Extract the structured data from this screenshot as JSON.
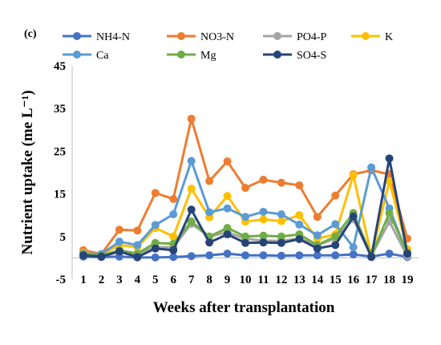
{
  "chart_data": {
    "type": "line",
    "panel_label": "(c)",
    "xlabel": "Weeks after transplantation",
    "ylabel": "Nutrient uptake (me L⁻¹)",
    "x": [
      1,
      2,
      3,
      4,
      5,
      6,
      7,
      8,
      9,
      10,
      11,
      12,
      13,
      14,
      15,
      16,
      17,
      18,
      19
    ],
    "x_tick_labels": [
      "1",
      "2",
      "3",
      "4",
      "5",
      "6",
      "7",
      "8",
      "9",
      "10",
      "11",
      "12",
      "13",
      "14",
      "15",
      "16",
      "17",
      "18",
      "19"
    ],
    "ylim": [
      -5,
      45
    ],
    "y_ticks": [
      -5,
      5,
      15,
      25,
      35,
      45
    ],
    "y_tick_labels": [
      "-5",
      "5",
      "15",
      "25",
      "35",
      "45"
    ],
    "grid": false,
    "legend_position": "top",
    "series": [
      {
        "name": "NH4-N",
        "color": "#4472C4",
        "values": [
          0.3,
          0.2,
          0.3,
          0.1,
          0.1,
          0.2,
          0.4,
          0.6,
          1.0,
          0.6,
          0.6,
          0.5,
          0.6,
          0.6,
          0.6,
          0.8,
          0.3,
          1.0,
          0.2
        ]
      },
      {
        "name": "NO3-N",
        "color": "#ED7D31",
        "values": [
          1.8,
          0.9,
          6.6,
          6.4,
          15.2,
          13.8,
          32.6,
          18.0,
          22.6,
          16.4,
          18.3,
          17.6,
          17.0,
          9.6,
          14.6,
          19.6,
          20.5,
          19.6,
          4.5
        ]
      },
      {
        "name": "PO4-P",
        "color": "#A5A5A5",
        "values": [
          0.8,
          0.6,
          1.5,
          1.0,
          2.5,
          2.5,
          8.0,
          5.0,
          6.0,
          4.5,
          4.0,
          4.0,
          4.5,
          3.0,
          4.5,
          9.0,
          0.5,
          8.5,
          0.4
        ]
      },
      {
        "name": "K",
        "color": "#FFC000",
        "values": [
          1.2,
          0.8,
          3.0,
          2.5,
          7.0,
          5.0,
          16.2,
          9.5,
          14.5,
          8.5,
          9.0,
          8.6,
          10.0,
          4.5,
          5.5,
          19.4,
          0.5,
          18.0,
          2.0
        ]
      },
      {
        "name": "Ca",
        "color": "#5B9BD5",
        "values": [
          1.0,
          0.9,
          3.8,
          3.0,
          7.7,
          10.2,
          22.7,
          10.7,
          11.6,
          9.6,
          10.8,
          10.2,
          7.8,
          5.3,
          7.9,
          2.5,
          21.2,
          11.6,
          0.9
        ]
      },
      {
        "name": "Mg",
        "color": "#70AD47",
        "values": [
          0.8,
          0.5,
          1.8,
          1.0,
          3.5,
          3.3,
          8.5,
          5.0,
          7.0,
          5.0,
          5.2,
          5.0,
          5.5,
          3.0,
          5.0,
          10.5,
          0.5,
          10.5,
          1.2
        ]
      },
      {
        "name": "SO4-S",
        "color": "#264478",
        "values": [
          0.6,
          0.3,
          1.5,
          0.2,
          2.2,
          1.8,
          11.3,
          3.6,
          5.5,
          3.5,
          3.6,
          3.5,
          4.4,
          2.2,
          3.0,
          9.7,
          0.2,
          23.3,
          1.0
        ]
      }
    ]
  }
}
